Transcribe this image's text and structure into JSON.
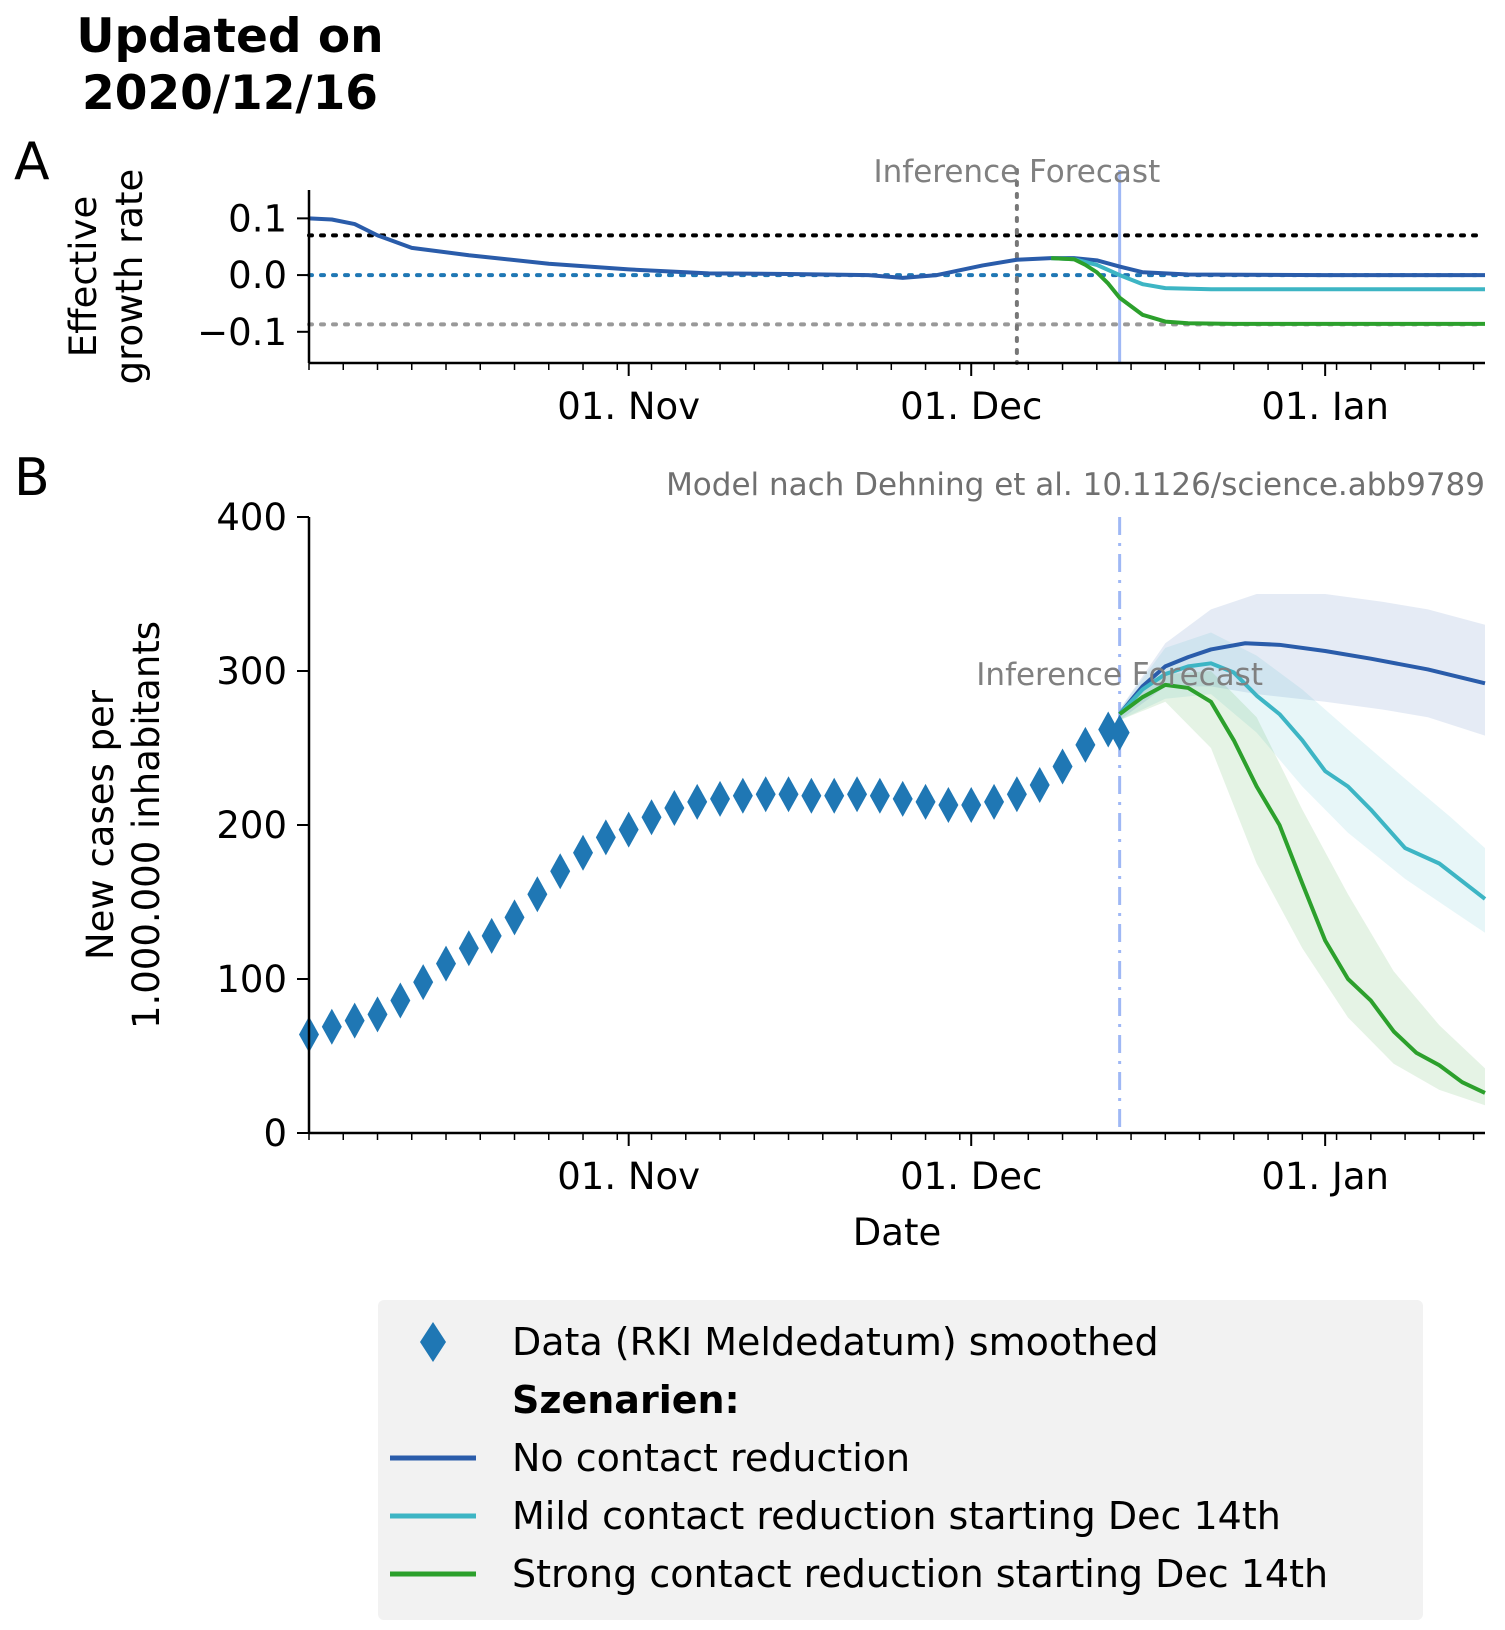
{
  "header": {
    "title": "Updated on\n2020/12/16"
  },
  "panels": {
    "a_label": "A",
    "b_label": "B"
  },
  "colors": {
    "data": "#1f77b4",
    "no_reduction": "#2a5caa",
    "mild": "#3db5c4",
    "strong": "#2ca02c",
    "forecast_line": "#9fb8f5",
    "ref_black": "#000000",
    "ref_blue": "#1f77b4",
    "ref_gray": "#999999"
  },
  "chart_data": [
    {
      "type": "line",
      "panel": "A",
      "ylabel": "Effective\ngrowth rate",
      "xlabel": "",
      "x_start": "2020-10-04",
      "x_end": "2021-01-15",
      "xticks": [
        {
          "date": "2020-11-01",
          "label": "01. Nov"
        },
        {
          "date": "2020-12-01",
          "label": "01. Dec"
        },
        {
          "date": "2021-01-01",
          "label": "01. Jan"
        }
      ],
      "yticks": [
        {
          "value": 0.1,
          "label": "0.1"
        },
        {
          "value": 0.0,
          "label": "0.0"
        },
        {
          "value": -0.1,
          "label": "−0.1"
        }
      ],
      "ylim": [
        -0.155,
        0.15
      ],
      "reference_lines": [
        {
          "y": 0.07,
          "style": "dotted",
          "color": "#000000"
        },
        {
          "y": 0.0,
          "style": "dotted",
          "color": "#1f77b4"
        },
        {
          "y": -0.087,
          "style": "dotted",
          "color": "#999999"
        }
      ],
      "inference_end": "2020-12-05",
      "forecast_start": "2020-12-14",
      "annotation": "Inference  Forecast",
      "series": [
        {
          "name": "No contact reduction",
          "x": [
            "2020-10-04",
            "2020-10-06",
            "2020-10-08",
            "2020-10-10",
            "2020-10-13",
            "2020-10-18",
            "2020-10-25",
            "2020-11-01",
            "2020-11-08",
            "2020-11-15",
            "2020-11-22",
            "2020-11-25",
            "2020-11-28",
            "2020-12-02",
            "2020-12-05",
            "2020-12-08",
            "2020-12-10",
            "2020-12-12",
            "2020-12-14",
            "2020-12-16",
            "2020-12-20",
            "2021-01-01",
            "2021-01-15"
          ],
          "y": [
            0.1,
            0.098,
            0.09,
            0.07,
            0.048,
            0.035,
            0.02,
            0.01,
            0.003,
            0.002,
            0.0,
            -0.005,
            0.0,
            0.017,
            0.027,
            0.03,
            0.03,
            0.026,
            0.015,
            0.005,
            0.001,
            0.0,
            0.0
          ]
        },
        {
          "name": "Mild contact reduction starting Dec 14th",
          "x": [
            "2020-12-08",
            "2020-12-10",
            "2020-12-12",
            "2020-12-14",
            "2020-12-16",
            "2020-12-18",
            "2020-12-22",
            "2021-01-01",
            "2021-01-15"
          ],
          "y": [
            0.03,
            0.028,
            0.018,
            0.0,
            -0.016,
            -0.023,
            -0.025,
            -0.025,
            -0.025
          ]
        },
        {
          "name": "Strong contact reduction starting Dec 14th",
          "x": [
            "2020-12-08",
            "2020-12-10",
            "2020-12-11",
            "2020-12-12",
            "2020-12-13",
            "2020-12-14",
            "2020-12-16",
            "2020-12-18",
            "2020-12-20",
            "2020-12-24",
            "2021-01-01",
            "2021-01-15"
          ],
          "y": [
            0.03,
            0.028,
            0.018,
            0.005,
            -0.015,
            -0.04,
            -0.07,
            -0.082,
            -0.085,
            -0.086,
            -0.086,
            -0.086
          ]
        }
      ]
    },
    {
      "type": "line",
      "panel": "B",
      "ylabel": "New cases per\n1.000.000 inhabitants",
      "xlabel": "Date",
      "x_start": "2020-10-04",
      "x_end": "2021-01-15",
      "xticks": [
        {
          "date": "2020-11-01",
          "label": "01. Nov"
        },
        {
          "date": "2020-12-01",
          "label": "01. Dec"
        },
        {
          "date": "2021-01-01",
          "label": "01. Jan"
        }
      ],
      "yticks": [
        {
          "value": 0,
          "label": "0"
        },
        {
          "value": 100,
          "label": "100"
        },
        {
          "value": 200,
          "label": "200"
        },
        {
          "value": 300,
          "label": "300"
        },
        {
          "value": 400,
          "label": "400"
        }
      ],
      "ylim": [
        0,
        400
      ],
      "forecast_start": "2020-12-14",
      "annotation": "Inference  Forecast",
      "model_note": "Model nach Dehning et al. 10.1126/science.abb9789",
      "data_series": {
        "name": "Data (RKI Meldedatum) smoothed",
        "x": [
          "2020-10-04",
          "2020-10-06",
          "2020-10-08",
          "2020-10-10",
          "2020-10-12",
          "2020-10-14",
          "2020-10-16",
          "2020-10-18",
          "2020-10-20",
          "2020-10-22",
          "2020-10-24",
          "2020-10-26",
          "2020-10-28",
          "2020-10-30",
          "2020-11-01",
          "2020-11-03",
          "2020-11-05",
          "2020-11-07",
          "2020-11-09",
          "2020-11-11",
          "2020-11-13",
          "2020-11-15",
          "2020-11-17",
          "2020-11-19",
          "2020-11-21",
          "2020-11-23",
          "2020-11-25",
          "2020-11-27",
          "2020-11-29",
          "2020-12-01",
          "2020-12-03",
          "2020-12-05",
          "2020-12-07",
          "2020-12-09",
          "2020-12-11",
          "2020-12-13",
          "2020-12-14"
        ],
        "y": [
          64,
          69,
          73,
          77,
          86,
          98,
          110,
          120,
          128,
          140,
          155,
          170,
          182,
          192,
          197,
          205,
          211,
          215,
          217,
          219,
          220,
          220,
          219,
          219,
          220,
          219,
          217,
          215,
          213,
          213,
          215,
          220,
          226,
          238,
          252,
          262,
          260
        ]
      },
      "series": [
        {
          "name": "No contact reduction",
          "x": [
            "2020-12-14",
            "2020-12-16",
            "2020-12-18",
            "2020-12-20",
            "2020-12-22",
            "2020-12-25",
            "2020-12-28",
            "2021-01-01",
            "2021-01-05",
            "2021-01-10",
            "2021-01-15"
          ],
          "y": [
            272,
            290,
            303,
            309,
            314,
            318,
            317,
            313,
            308,
            301,
            292
          ]
        },
        {
          "name": "Mild contact reduction starting Dec 14th",
          "x": [
            "2020-12-14",
            "2020-12-16",
            "2020-12-18",
            "2020-12-20",
            "2020-12-22",
            "2020-12-24",
            "2020-12-26",
            "2020-12-28",
            "2020-12-30",
            "2021-01-01",
            "2021-01-03",
            "2021-01-05",
            "2021-01-08",
            "2021-01-11",
            "2021-01-15"
          ],
          "y": [
            272,
            288,
            298,
            303,
            305,
            299,
            284,
            272,
            255,
            235,
            225,
            210,
            185,
            175,
            152
          ]
        },
        {
          "name": "Strong contact reduction starting Dec 14th",
          "x": [
            "2020-12-14",
            "2020-12-16",
            "2020-12-18",
            "2020-12-20",
            "2020-12-22",
            "2020-12-24",
            "2020-12-26",
            "2020-12-28",
            "2020-12-30",
            "2021-01-01",
            "2021-01-03",
            "2021-01-05",
            "2021-01-07",
            "2021-01-09",
            "2021-01-11",
            "2021-01-13",
            "2021-01-15"
          ],
          "y": [
            272,
            283,
            291,
            289,
            280,
            255,
            225,
            200,
            162,
            125,
            100,
            86,
            66,
            52,
            44,
            33,
            26
          ]
        }
      ],
      "bands": [
        {
          "series": "No contact reduction",
          "x": [
            "2020-12-14",
            "2020-12-18",
            "2020-12-22",
            "2020-12-26",
            "2021-01-01",
            "2021-01-06",
            "2021-01-10",
            "2021-01-15"
          ],
          "upper": [
            275,
            318,
            340,
            350,
            350,
            345,
            340,
            330
          ],
          "lower": [
            268,
            290,
            290,
            285,
            280,
            275,
            270,
            258
          ]
        },
        {
          "series": "Mild contact reduction starting Dec 14th",
          "x": [
            "2020-12-14",
            "2020-12-18",
            "2020-12-22",
            "2020-12-26",
            "2020-12-30",
            "2021-01-03",
            "2021-01-08",
            "2021-01-12",
            "2021-01-15"
          ],
          "upper": [
            275,
            315,
            325,
            310,
            288,
            262,
            230,
            205,
            185
          ],
          "lower": [
            268,
            282,
            285,
            260,
            225,
            195,
            165,
            145,
            130
          ]
        },
        {
          "series": "Strong contact reduction starting Dec 14th",
          "x": [
            "2020-12-14",
            "2020-12-18",
            "2020-12-22",
            "2020-12-26",
            "2020-12-30",
            "2021-01-03",
            "2021-01-07",
            "2021-01-11",
            "2021-01-15"
          ],
          "upper": [
            275,
            298,
            300,
            270,
            210,
            155,
            105,
            70,
            42
          ],
          "lower": [
            268,
            280,
            250,
            175,
            120,
            75,
            45,
            28,
            18
          ]
        }
      ]
    }
  ],
  "legend": {
    "data_label": "Data (RKI Meldedatum) smoothed",
    "heading": "Szenarien:",
    "no_reduction": "No contact reduction",
    "mild": "Mild contact reduction starting Dec 14th",
    "strong": "Strong contact reduction starting Dec 14th"
  }
}
